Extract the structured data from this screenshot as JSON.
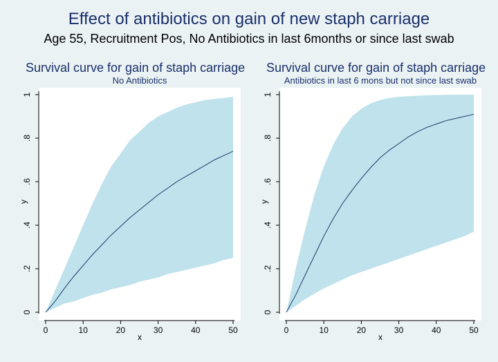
{
  "figure": {
    "title": "Effect of antibiotics on gain of new staph carriage",
    "subtitle": "Age 55, Recruitment Pos, No Antibiotics in last 6months or since last swab"
  },
  "chart_data": [
    {
      "type": "area",
      "title": "Survival curve for gain of staph carriage",
      "subtitle": "No Antibiotics",
      "xlabel": "x",
      "ylabel": "y",
      "xlim": [
        0,
        50
      ],
      "ylim": [
        0,
        1
      ],
      "xticks": [
        0,
        10,
        20,
        30,
        40,
        50
      ],
      "xtick_labels": [
        "0",
        "10",
        "20",
        "30",
        "40",
        "50"
      ],
      "yticks": [
        0,
        0.2,
        0.4,
        0.6,
        0.8,
        1
      ],
      "ytick_labels": [
        "0",
        ".2",
        ".4",
        ".6",
        ".8",
        "1"
      ],
      "grid": false,
      "colors": {
        "band": "#bfe2ec",
        "line": "#1a3a6b"
      },
      "x": [
        0,
        2.5,
        5,
        7.5,
        10,
        12.5,
        15,
        17.5,
        20,
        22.5,
        25,
        27.5,
        30,
        32.5,
        35,
        37.5,
        40,
        42.5,
        45,
        47.5,
        50
      ],
      "series": [
        {
          "role": "estimate",
          "values": [
            0,
            0.05,
            0.11,
            0.165,
            0.215,
            0.265,
            0.31,
            0.355,
            0.395,
            0.435,
            0.47,
            0.505,
            0.54,
            0.57,
            0.6,
            0.625,
            0.65,
            0.675,
            0.7,
            0.72,
            0.74
          ]
        },
        {
          "role": "upper",
          "values": [
            0,
            0.1,
            0.2,
            0.3,
            0.4,
            0.5,
            0.59,
            0.67,
            0.73,
            0.79,
            0.83,
            0.87,
            0.9,
            0.92,
            0.94,
            0.955,
            0.965,
            0.975,
            0.98,
            0.985,
            0.99
          ]
        },
        {
          "role": "lower",
          "values": [
            0,
            0.02,
            0.04,
            0.05,
            0.065,
            0.08,
            0.09,
            0.105,
            0.115,
            0.125,
            0.14,
            0.15,
            0.16,
            0.175,
            0.185,
            0.195,
            0.205,
            0.215,
            0.225,
            0.24,
            0.25
          ]
        }
      ]
    },
    {
      "type": "area",
      "title": "Survival curve for gain of staph carriage",
      "subtitle": "Antibiotics in last 6 mons but not since last swab",
      "xlabel": "x",
      "ylabel": "y",
      "xlim": [
        0,
        50
      ],
      "ylim": [
        0,
        1
      ],
      "xticks": [
        0,
        10,
        20,
        30,
        40,
        50
      ],
      "xtick_labels": [
        "0",
        "10",
        "20",
        "30",
        "40",
        "50"
      ],
      "yticks": [
        0,
        0.2,
        0.4,
        0.6,
        0.8,
        1
      ],
      "ytick_labels": [
        "0",
        ".2",
        ".4",
        ".6",
        ".8",
        "1"
      ],
      "grid": false,
      "colors": {
        "band": "#bfe2ec",
        "line": "#1a3a6b"
      },
      "x": [
        0,
        2.5,
        5,
        7.5,
        10,
        12.5,
        15,
        17.5,
        20,
        22.5,
        25,
        27.5,
        30,
        32.5,
        35,
        37.5,
        40,
        42.5,
        45,
        47.5,
        50
      ],
      "series": [
        {
          "role": "estimate",
          "values": [
            0,
            0.08,
            0.17,
            0.26,
            0.35,
            0.43,
            0.5,
            0.56,
            0.615,
            0.665,
            0.71,
            0.745,
            0.775,
            0.805,
            0.83,
            0.85,
            0.865,
            0.88,
            0.89,
            0.9,
            0.91
          ]
        },
        {
          "role": "upper",
          "values": [
            0,
            0.2,
            0.38,
            0.54,
            0.67,
            0.77,
            0.845,
            0.9,
            0.935,
            0.96,
            0.975,
            0.985,
            0.99,
            0.993,
            0.995,
            0.997,
            0.998,
            0.999,
            0.999,
            1,
            1
          ]
        },
        {
          "role": "lower",
          "values": [
            0,
            0.03,
            0.06,
            0.085,
            0.11,
            0.13,
            0.15,
            0.17,
            0.185,
            0.2,
            0.215,
            0.23,
            0.245,
            0.26,
            0.275,
            0.29,
            0.305,
            0.32,
            0.335,
            0.35,
            0.37
          ]
        }
      ]
    }
  ]
}
